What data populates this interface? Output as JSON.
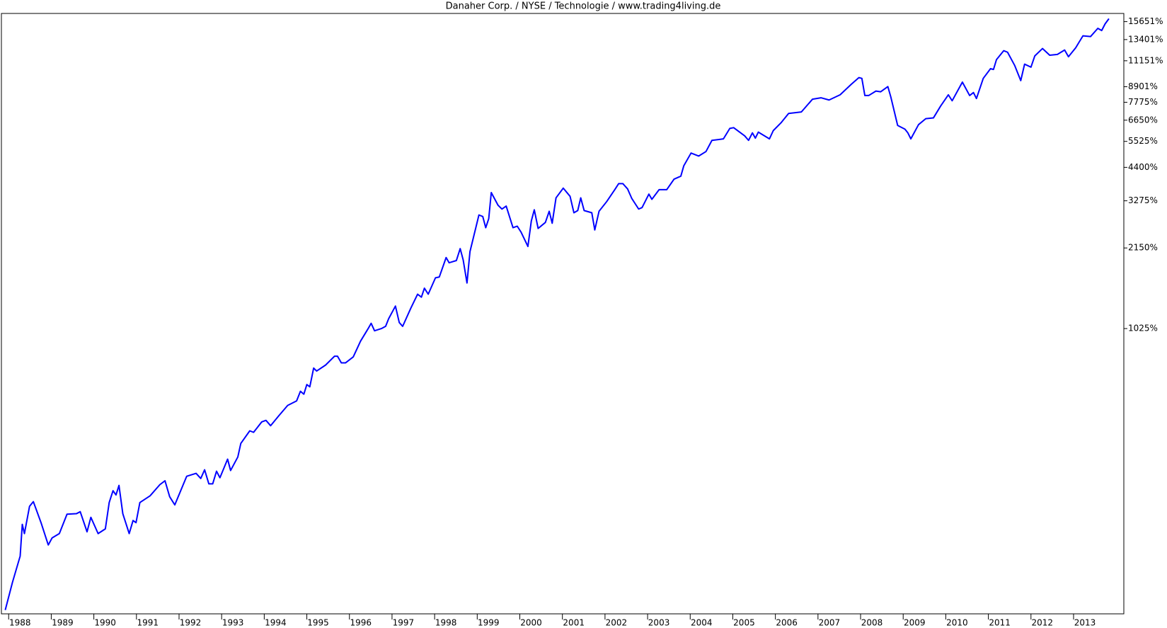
{
  "chart_data": {
    "type": "line",
    "title": "Danaher Corp. / NYSE / Technologie / www.trading4living.de",
    "yscale": "log-growth",
    "color": "#0000ff",
    "xlim": [
      1987.83,
      2014.18
    ],
    "xticks": [
      1988,
      1989,
      1990,
      1991,
      1992,
      1993,
      1994,
      1995,
      1996,
      1997,
      1998,
      1999,
      2000,
      2001,
      2002,
      2003,
      2004,
      2005,
      2006,
      2007,
      2008,
      2009,
      2010,
      2011,
      2012,
      2013
    ],
    "ylim": [
      -3.2,
      16800
    ],
    "yticks": [
      {
        "value": 1025,
        "label": "1025%"
      },
      {
        "value": 2150,
        "label": "2150%"
      },
      {
        "value": 3275,
        "label": "3275%"
      },
      {
        "value": 4400,
        "label": "4400%"
      },
      {
        "value": 5525,
        "label": "5525%"
      },
      {
        "value": 6650,
        "label": "6650%"
      },
      {
        "value": 7775,
        "label": "7775%"
      },
      {
        "value": 8901,
        "label": "8901%"
      },
      {
        "value": 11151,
        "label": "11151%"
      },
      {
        "value": 13401,
        "label": "13401%"
      },
      {
        "value": 15651,
        "label": "15651%"
      }
    ],
    "x": [
      1987.92,
      1988.09,
      1988.27,
      1988.32,
      1988.37,
      1988.49,
      1988.58,
      1988.76,
      1988.93,
      1989.02,
      1989.19,
      1989.37,
      1989.59,
      1989.68,
      1989.84,
      1989.93,
      1990.1,
      1990.27,
      1990.36,
      1990.45,
      1990.52,
      1990.59,
      1990.68,
      1990.83,
      1990.92,
      1990.99,
      1991.08,
      1991.32,
      1991.55,
      1991.67,
      1991.78,
      1991.9,
      1992.18,
      1992.4,
      1992.51,
      1992.6,
      1992.7,
      1992.79,
      1992.88,
      1992.96,
      1993.14,
      1993.21,
      1993.38,
      1993.45,
      1993.66,
      1993.75,
      1993.94,
      1994.04,
      1994.15,
      1994.34,
      1994.55,
      1994.76,
      1994.85,
      1994.93,
      1995.0,
      1995.07,
      1995.16,
      1995.23,
      1995.44,
      1995.65,
      1995.72,
      1995.81,
      1995.91,
      1996.09,
      1996.26,
      1996.44,
      1996.51,
      1996.59,
      1996.75,
      1996.85,
      1996.92,
      1997.08,
      1997.17,
      1997.25,
      1997.44,
      1997.6,
      1997.69,
      1997.76,
      1997.85,
      1998.02,
      1998.11,
      1998.27,
      1998.34,
      1998.51,
      1998.6,
      1998.67,
      1998.76,
      1998.83,
      1999.04,
      1999.13,
      1999.2,
      1999.27,
      1999.33,
      1999.49,
      1999.58,
      1999.68,
      1999.84,
      1999.94,
      2000.03,
      2000.19,
      2000.27,
      2000.34,
      2000.43,
      2000.6,
      2000.69,
      2000.76,
      2000.85,
      2001.02,
      2001.18,
      2001.27,
      2001.36,
      2001.43,
      2001.51,
      2001.69,
      2001.76,
      2001.86,
      2002.04,
      2002.23,
      2002.32,
      2002.42,
      2002.53,
      2002.63,
      2002.79,
      2002.87,
      2003.03,
      2003.1,
      2003.27,
      2003.45,
      2003.62,
      2003.78,
      2003.85,
      2004.02,
      2004.2,
      2004.37,
      2004.51,
      2004.78,
      2004.93,
      2005.02,
      2005.28,
      2005.37,
      2005.46,
      2005.53,
      2005.6,
      2005.86,
      2005.95,
      2006.14,
      2006.31,
      2006.61,
      2006.87,
      2007.07,
      2007.26,
      2007.52,
      2007.78,
      2007.96,
      2008.03,
      2008.1,
      2008.19,
      2008.36,
      2008.47,
      2008.64,
      2008.71,
      2008.87,
      2009.04,
      2009.11,
      2009.18,
      2009.36,
      2009.53,
      2009.71,
      2009.88,
      2010.06,
      2010.15,
      2010.39,
      2010.56,
      2010.65,
      2010.72,
      2010.88,
      2011.05,
      2011.12,
      2011.19,
      2011.36,
      2011.45,
      2011.62,
      2011.76,
      2011.85,
      2012.0,
      2012.09,
      2012.27,
      2012.44,
      2012.62,
      2012.79,
      2012.88,
      2013.05,
      2013.22,
      2013.4,
      2013.57,
      2013.66,
      2013.74,
      2013.83
    ],
    "values": [
      0,
      27,
      59,
      109,
      93,
      144,
      154,
      112,
      75,
      86,
      93,
      128,
      129,
      133,
      96,
      122,
      93,
      101,
      152,
      179,
      169,
      192,
      129,
      93,
      116,
      112,
      152,
      167,
      194,
      204,
      165,
      147,
      216,
      224,
      210,
      234,
      196,
      196,
      230,
      212,
      266,
      232,
      273,
      319,
      367,
      361,
      404,
      411,
      388,
      431,
      481,
      504,
      556,
      540,
      595,
      582,
      701,
      681,
      722,
      787,
      787,
      738,
      738,
      782,
      909,
      1025,
      1077,
      1004,
      1025,
      1047,
      1124,
      1265,
      1085,
      1047,
      1239,
      1412,
      1374,
      1492,
      1412,
      1641,
      1653,
      1972,
      1881,
      1919,
      2137,
      1932,
      1565,
      2081,
      2888,
      2849,
      2578,
      2793,
      3522,
      3147,
      3044,
      3126,
      2578,
      2613,
      2477,
      2180,
      2738,
      3024,
      2561,
      2702,
      2984,
      2683,
      3362,
      3663,
      3407,
      2945,
      3004,
      3362,
      3004,
      2945,
      2527,
      2984,
      3253,
      3615,
      3811,
      3811,
      3639,
      3340,
      3044,
      3084,
      3475,
      3318,
      3615,
      3615,
      3964,
      4071,
      4463,
      4988,
      4859,
      5054,
      5575,
      5648,
      6189,
      6230,
      5797,
      5575,
      5953,
      5685,
      5992,
      5648,
      6071,
      6522,
      7052,
      7144,
      7982,
      8085,
      7929,
      8297,
      9089,
      9635,
      9570,
      8244,
      8244,
      8571,
      8516,
      8912,
      8138,
      6354,
      6151,
      5953,
      5648,
      6396,
      6739,
      6783,
      7527,
      8297,
      7878,
      9265,
      8244,
      8461,
      8033,
      9570,
      10410,
      10340,
      11260,
      12170,
      12010,
      10690,
      9387,
      10830,
      10550,
      11630,
      12400,
      11700,
      11780,
      12240,
      11550,
      12480,
      13840,
      13760,
      14770,
      14490,
      15350,
      16060
    ]
  }
}
